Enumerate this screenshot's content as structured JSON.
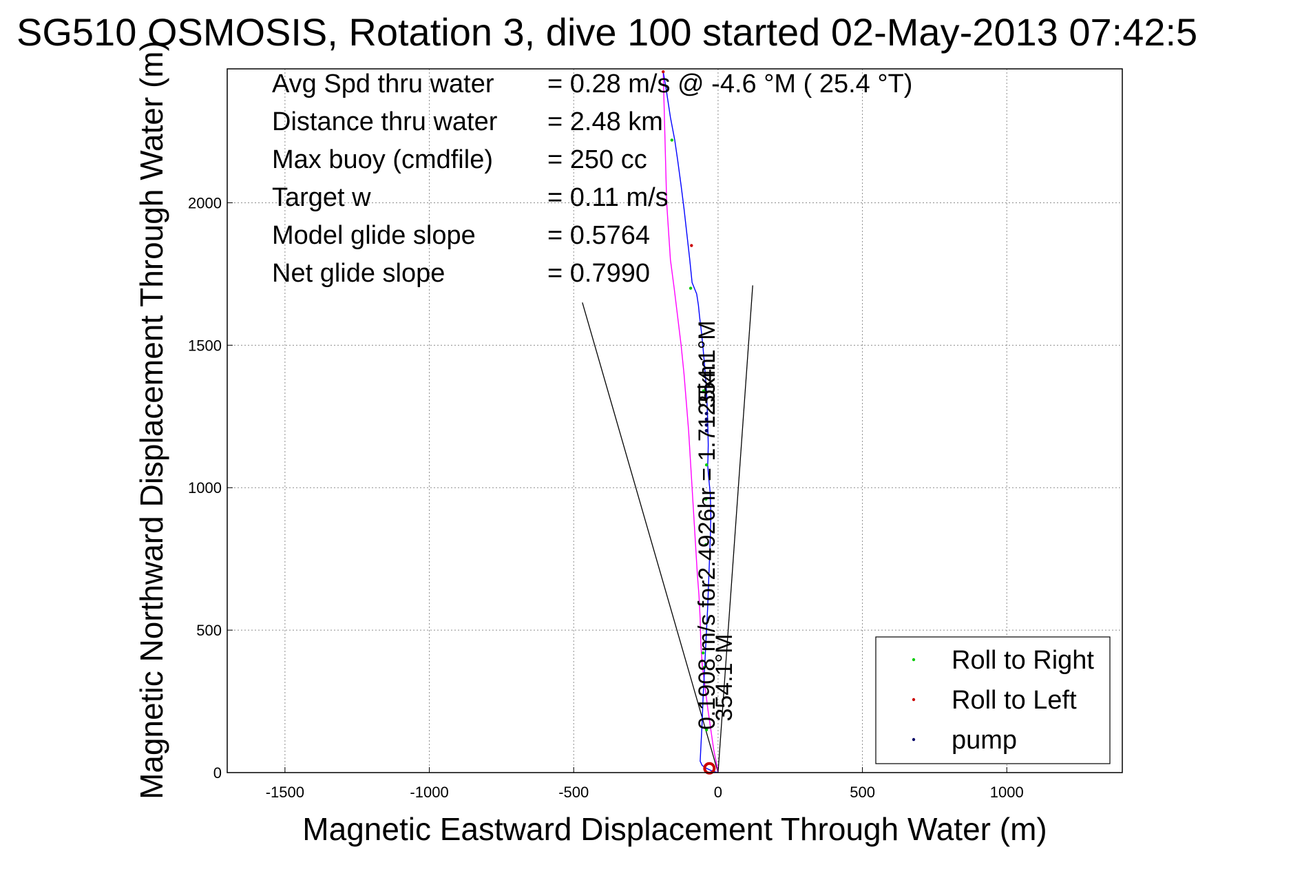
{
  "chart_data": {
    "type": "line",
    "title": "SG510 OSMOSIS, Rotation 3, dive 100 started 02-May-2013 07:42:5",
    "xlabel": "Magnetic Eastward Displacement Through Water (m)",
    "ylabel": "Magnetic Northward Displacement Through Water (m)",
    "xlim": [
      -1700,
      1400
    ],
    "ylim": [
      0,
      2470
    ],
    "xticks": [
      -1500,
      -1000,
      -500,
      0,
      500,
      1000
    ],
    "yticks": [
      0,
      500,
      1000,
      1500,
      2000
    ],
    "grid": true,
    "legend_position": "bottom-right",
    "stats": [
      {
        "label": "Avg Spd thru water",
        "value": "=  0.28 m/s @  -4.6 °M ( 25.4 °T)"
      },
      {
        "label": "Distance thru water",
        "value": "=  2.48 km"
      },
      {
        "label": "Max buoy (cmdfile)",
        "value": "= 250 cc"
      },
      {
        "label": "Target w",
        "value": "= 0.11 m/s"
      },
      {
        "label": "Model glide slope",
        "value": "= 0.5764"
      },
      {
        "label": "Net glide slope",
        "value": "= 0.7990"
      }
    ],
    "track_descent": {
      "color": "#ff00ff",
      "x": [
        0,
        -5,
        -15,
        -25,
        -35,
        -45,
        -55,
        -60,
        -62,
        -66,
        -72,
        -78,
        -84,
        -90,
        -96,
        -102,
        -110,
        -118,
        -128,
        -140,
        -152,
        -165,
        -178,
        -190
      ],
      "y": [
        0,
        30,
        80,
        150,
        220,
        300,
        380,
        460,
        540,
        620,
        700,
        800,
        900,
        1000,
        1100,
        1200,
        1300,
        1400,
        1500,
        1600,
        1700,
        1800,
        2000,
        2460
      ]
    },
    "track_ascent": {
      "color": "#0000ff",
      "x": [
        -190,
        -180,
        -165,
        -150,
        -140,
        -128,
        -118,
        -108,
        -98,
        -90,
        -82,
        -74,
        -68,
        -64,
        -58,
        -52,
        -46,
        -40,
        -36,
        -34,
        -35,
        -36,
        -33,
        -27,
        -25,
        -27,
        -30,
        -33,
        -36,
        -40,
        -44,
        -48,
        -52,
        -55,
        -58,
        -60,
        -62,
        -55,
        -40,
        -20,
        0
      ],
      "y": [
        2460,
        2400,
        2300,
        2220,
        2150,
        2060,
        1980,
        1890,
        1800,
        1720,
        1700,
        1680,
        1640,
        1600,
        1550,
        1490,
        1420,
        1340,
        1240,
        1150,
        1100,
        1080,
        1040,
        980,
        900,
        820,
        740,
        660,
        580,
        500,
        420,
        340,
        260,
        180,
        120,
        80,
        40,
        25,
        15,
        5,
        0
      ]
    },
    "dive_start_marker": {
      "x": -30,
      "y": 15,
      "color": "#cc0000"
    },
    "series": [
      {
        "name": "Roll to Right",
        "color": "#00cc00",
        "marker": "dot",
        "x": [
          -160,
          -95,
          -50,
          -40,
          -42,
          -42,
          -52,
          -47,
          -40
        ],
        "y": [
          2220,
          1700,
          1340,
          1080,
          960,
          800,
          420,
          370,
          150
        ]
      },
      {
        "name": "Roll to Left",
        "color": "#cc0000",
        "marker": "dot",
        "x": [
          -190,
          -92
        ],
        "y": [
          2460,
          1850
        ]
      },
      {
        "name": "pump",
        "color": "#000066",
        "marker": "dot",
        "x": [
          -40,
          -40,
          -40,
          -40
        ],
        "y": [
          1200,
          1220,
          1240,
          1260
        ]
      }
    ],
    "guide_lines": [
      {
        "x": [
          0,
          -470
        ],
        "y": [
          0,
          1650
        ]
      },
      {
        "x": [
          0,
          120
        ],
        "y": [
          0,
          1710
        ]
      }
    ],
    "annotations": [
      {
        "text": "0.1908 m/s for2.4926hr = 1.7125km",
        "x": -45,
        "y": 150,
        "angle": -90
      },
      {
        "text": "354.1°M",
        "x": 15,
        "y": 180,
        "angle": -90
      },
      {
        "text": "354.1°M",
        "x": -45,
        "y": 1280,
        "angle": -90
      }
    ]
  }
}
